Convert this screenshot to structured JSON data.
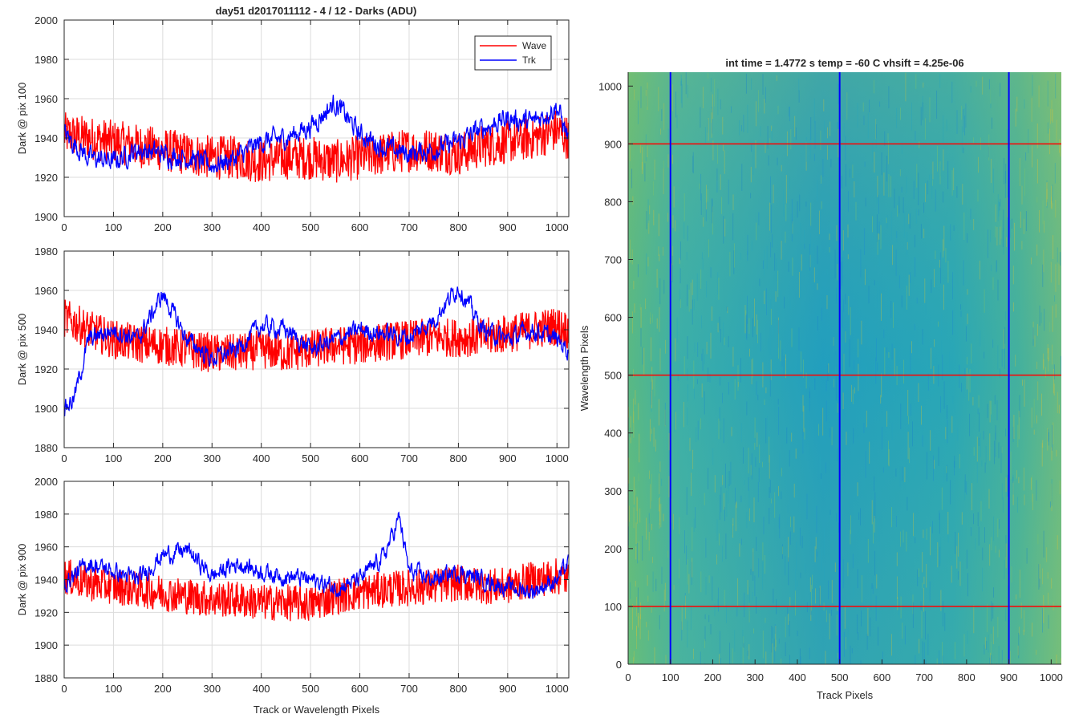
{
  "chart_data": [
    {
      "type": "line",
      "title": "day51 d2017011112 - 4 / 12 - Darks (ADU)",
      "xlabel": "",
      "ylabel": "Dark @ pix 100",
      "xlim": [
        0,
        1024
      ],
      "ylim": [
        1900,
        2000
      ],
      "xticks": [
        0,
        100,
        200,
        300,
        400,
        500,
        600,
        700,
        800,
        900,
        1000
      ],
      "yticks": [
        1900,
        1920,
        1940,
        1960,
        1980,
        2000
      ],
      "grid": true,
      "legend": {
        "placement": "top-right",
        "entries": [
          "Wave",
          "Trk"
        ]
      },
      "series": [
        {
          "name": "Wave",
          "color": "#ff0000",
          "x": [
            0,
            50,
            100,
            150,
            200,
            250,
            300,
            350,
            400,
            450,
            500,
            550,
            600,
            650,
            700,
            750,
            800,
            850,
            900,
            950,
            1000,
            1023
          ],
          "y": [
            1942,
            1940,
            1938,
            1936,
            1934,
            1932,
            1930,
            1930,
            1928,
            1930,
            1930,
            1928,
            1930,
            1932,
            1934,
            1934,
            1932,
            1936,
            1938,
            1940,
            1944,
            1940
          ]
        },
        {
          "name": "Trk",
          "color": "#0000ff",
          "x": [
            0,
            50,
            100,
            150,
            200,
            250,
            300,
            350,
            400,
            450,
            500,
            550,
            600,
            650,
            700,
            750,
            800,
            850,
            900,
            950,
            1000,
            1023
          ],
          "y": [
            1942,
            1930,
            1928,
            1934,
            1932,
            1930,
            1926,
            1930,
            1938,
            1940,
            1946,
            1958,
            1942,
            1935,
            1932,
            1934,
            1938,
            1945,
            1950,
            1948,
            1956,
            1940
          ]
        }
      ]
    },
    {
      "type": "line",
      "title": "",
      "xlabel": "",
      "ylabel": "Dark @ pix 500",
      "xlim": [
        0,
        1024
      ],
      "ylim": [
        1880,
        1980
      ],
      "xticks": [
        0,
        100,
        200,
        300,
        400,
        500,
        600,
        700,
        800,
        900,
        1000
      ],
      "yticks": [
        1880,
        1900,
        1920,
        1940,
        1960,
        1980
      ],
      "grid": true,
      "series": [
        {
          "name": "Wave",
          "color": "#ff0000",
          "x": [
            0,
            50,
            100,
            150,
            200,
            250,
            300,
            350,
            400,
            450,
            500,
            550,
            600,
            650,
            700,
            750,
            800,
            850,
            900,
            950,
            1000,
            1023
          ],
          "y": [
            1946,
            1940,
            1935,
            1933,
            1932,
            1930,
            1928,
            1928,
            1930,
            1928,
            1930,
            1932,
            1932,
            1934,
            1935,
            1936,
            1936,
            1936,
            1938,
            1940,
            1942,
            1940
          ]
        },
        {
          "name": "Trk",
          "color": "#0000ff",
          "x": [
            0,
            20,
            50,
            100,
            150,
            200,
            250,
            300,
            350,
            400,
            450,
            500,
            550,
            600,
            650,
            700,
            750,
            800,
            850,
            900,
            950,
            1000,
            1023
          ],
          "y": [
            1900,
            1905,
            1935,
            1940,
            1935,
            1958,
            1935,
            1925,
            1930,
            1942,
            1940,
            1930,
            1935,
            1940,
            1938,
            1936,
            1945,
            1962,
            1940,
            1935,
            1940,
            1935,
            1930
          ]
        }
      ]
    },
    {
      "type": "line",
      "title": "",
      "xlabel": "Track or Wavelength Pixels",
      "ylabel": "Dark @ pix 900",
      "xlim": [
        0,
        1024
      ],
      "ylim": [
        1880,
        2000
      ],
      "xticks": [
        0,
        100,
        200,
        300,
        400,
        500,
        600,
        700,
        800,
        900,
        1000
      ],
      "yticks": [
        1880,
        1900,
        1920,
        1940,
        1960,
        1980,
        2000
      ],
      "grid": true,
      "series": [
        {
          "name": "Wave",
          "color": "#ff0000",
          "x": [
            0,
            50,
            100,
            150,
            200,
            250,
            300,
            350,
            400,
            450,
            500,
            550,
            600,
            650,
            700,
            750,
            800,
            850,
            900,
            950,
            1000,
            1023
          ],
          "y": [
            1942,
            1938,
            1936,
            1934,
            1932,
            1930,
            1928,
            1928,
            1926,
            1926,
            1925,
            1930,
            1932,
            1934,
            1935,
            1936,
            1938,
            1936,
            1936,
            1940,
            1942,
            1940
          ]
        },
        {
          "name": "Trk",
          "color": "#0000ff",
          "x": [
            0,
            50,
            100,
            150,
            200,
            250,
            300,
            350,
            400,
            450,
            500,
            550,
            600,
            650,
            680,
            700,
            750,
            800,
            850,
            900,
            950,
            1000,
            1023
          ],
          "y": [
            1938,
            1950,
            1945,
            1940,
            1955,
            1958,
            1942,
            1950,
            1945,
            1942,
            1940,
            1935,
            1940,
            1955,
            1978,
            1945,
            1940,
            1945,
            1940,
            1935,
            1933,
            1940,
            1950
          ]
        }
      ]
    },
    {
      "type": "heatmap",
      "title": "int time = 1.4772 s    temp = -60 C    vhsift = 4.25e-06",
      "xlabel": "Track Pixels",
      "ylabel": "Wavelength Pixels",
      "xlim": [
        0,
        1024
      ],
      "ylim": [
        0,
        1024
      ],
      "xticks": [
        0,
        100,
        200,
        300,
        400,
        500,
        600,
        700,
        800,
        900,
        1000
      ],
      "yticks": [
        0,
        100,
        200,
        300,
        400,
        500,
        600,
        700,
        800,
        900,
        1000
      ],
      "vertical_markers": {
        "color": "#0000ff",
        "x": [
          100,
          500,
          900
        ]
      },
      "horizontal_markers": {
        "color": "#ff0000",
        "y": [
          100,
          500,
          900
        ]
      }
    }
  ]
}
